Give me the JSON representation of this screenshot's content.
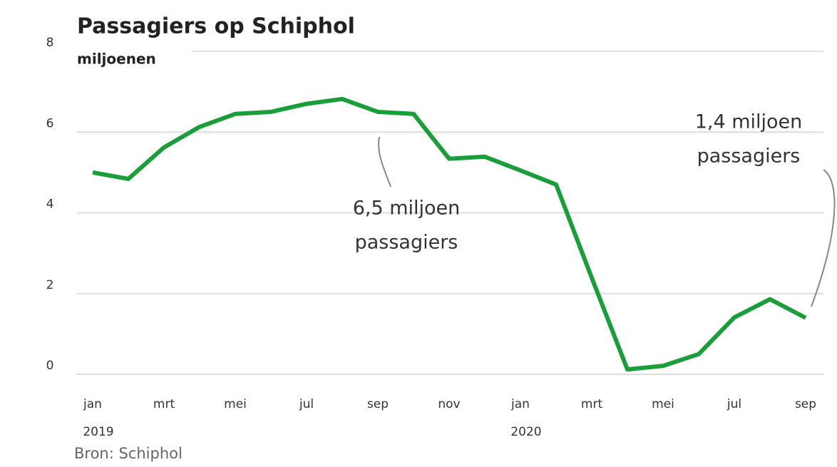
{
  "chart_data": {
    "type": "line",
    "title": "Passagiers op Schiphol",
    "y_label": "miljoenen",
    "source": "Bron: Schiphol",
    "categories": [
      "jan",
      null,
      "mrt",
      null,
      "mei",
      null,
      "jul",
      null,
      "sep",
      null,
      "nov",
      null,
      "jan",
      null,
      "mrt",
      null,
      "mei",
      null,
      "jul",
      null,
      "sep"
    ],
    "x_groups": [
      {
        "label": "2019",
        "start": 0
      },
      {
        "label": "2020",
        "start": 12
      }
    ],
    "series": [
      {
        "name": "Passagiers",
        "color": "#1a9e3a",
        "values": [
          5.0,
          4.84,
          5.62,
          6.13,
          6.45,
          6.5,
          6.7,
          6.82,
          6.5,
          6.45,
          5.34,
          5.39,
          5.05,
          4.7,
          2.39,
          0.12,
          0.21,
          0.5,
          1.41,
          1.86,
          1.4
        ]
      }
    ],
    "ylim": [
      0,
      8
    ],
    "yticks": [
      0,
      2,
      4,
      6,
      8
    ],
    "grid": true,
    "annotations": [
      {
        "lines": [
          "6,5 miljoen",
          "passagiers"
        ],
        "index": 8
      },
      {
        "lines": [
          "1,4 miljoen",
          "passagiers"
        ],
        "index": 20
      }
    ]
  }
}
